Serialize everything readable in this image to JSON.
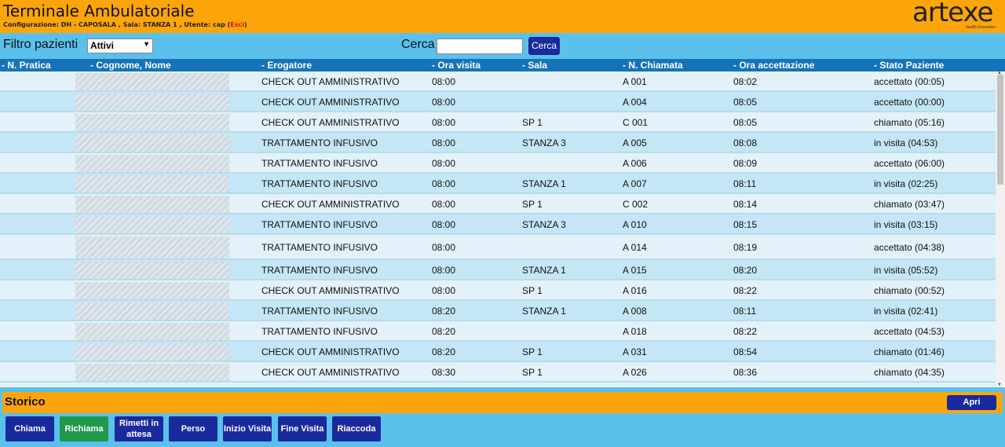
{
  "header": {
    "title": "Terminale Ambulatoriale",
    "config": "Configurazione: DH - CAPOSALA , Sala: STANZA 1 , Utente: cap (",
    "exit_label": "Esci",
    "config_end": ")",
    "logo_text": "artexe",
    "logo_tagline": "health innovation"
  },
  "filter": {
    "label": "Filtro pazienti",
    "selected": "Attivi",
    "search_label": "Cerca",
    "search_value": "",
    "search_button": "Cerca"
  },
  "table": {
    "columns": [
      "- N. Pratica",
      "- Cognome, Nome",
      "- Erogatore",
      "- Ora visita",
      "- Sala",
      "- N. Chiamata",
      "- Ora accettazione",
      "- Stato Paziente"
    ],
    "rows": [
      {
        "erogatore": "CHECK OUT AMMINISTRATIVO",
        "ora": "08:00",
        "sala": "",
        "chiamata": "A 001",
        "accettazione": "08:02",
        "stato": "accettato (00:05)"
      },
      {
        "erogatore": "CHECK OUT AMMINISTRATIVO",
        "ora": "08:00",
        "sala": "",
        "chiamata": "A 004",
        "accettazione": "08:05",
        "stato": "accettato (00:00)"
      },
      {
        "erogatore": "CHECK OUT AMMINISTRATIVO",
        "ora": "08:00",
        "sala": "SP 1",
        "chiamata": "C 001",
        "accettazione": "08:05",
        "stato": "chiamato (05:16)"
      },
      {
        "erogatore": "TRATTAMENTO INFUSIVO",
        "ora": "08:00",
        "sala": "STANZA 3",
        "chiamata": "A 005",
        "accettazione": "08:08",
        "stato": "in visita (04:53)"
      },
      {
        "erogatore": "TRATTAMENTO INFUSIVO",
        "ora": "08:00",
        "sala": "",
        "chiamata": "A 006",
        "accettazione": "08:09",
        "stato": "accettato (06:00)"
      },
      {
        "erogatore": "TRATTAMENTO INFUSIVO",
        "ora": "08:00",
        "sala": "STANZA 1",
        "chiamata": "A 007",
        "accettazione": "08:11",
        "stato": "in visita (02:25)"
      },
      {
        "erogatore": "CHECK OUT AMMINISTRATIVO",
        "ora": "08:00",
        "sala": "SP 1",
        "chiamata": "C 002",
        "accettazione": "08:14",
        "stato": "chiamato (03:47)"
      },
      {
        "erogatore": "TRATTAMENTO INFUSIVO",
        "ora": "08:00",
        "sala": "STANZA 3",
        "chiamata": "A 010",
        "accettazione": "08:15",
        "stato": "in visita (03:15)"
      },
      {
        "erogatore": "TRATTAMENTO INFUSIVO",
        "ora": "08:00",
        "sala": "",
        "chiamata": "A 014",
        "accettazione": "08:19",
        "stato": "accettato (04:38)"
      },
      {
        "erogatore": "TRATTAMENTO INFUSIVO",
        "ora": "08:00",
        "sala": "STANZA 1",
        "chiamata": "A 015",
        "accettazione": "08:20",
        "stato": "in visita (05:52)"
      },
      {
        "erogatore": "CHECK OUT AMMINISTRATIVO",
        "ora": "08:00",
        "sala": "SP 1",
        "chiamata": "A 016",
        "accettazione": "08:22",
        "stato": "chiamato (00:52)"
      },
      {
        "erogatore": "TRATTAMENTO INFUSIVO",
        "ora": "08:20",
        "sala": "STANZA 1",
        "chiamata": "A 008",
        "accettazione": "08:11",
        "stato": "in visita (02:41)"
      },
      {
        "erogatore": "TRATTAMENTO INFUSIVO",
        "ora": "08:20",
        "sala": "",
        "chiamata": "A 018",
        "accettazione": "08:22",
        "stato": "accettato (04:53)"
      },
      {
        "erogatore": "CHECK OUT AMMINISTRATIVO",
        "ora": "08:20",
        "sala": "SP 1",
        "chiamata": "A 031",
        "accettazione": "08:54",
        "stato": "chiamato (01:46)"
      },
      {
        "erogatore": "CHECK OUT AMMINISTRATIVO",
        "ora": "08:30",
        "sala": "SP 1",
        "chiamata": "A 026",
        "accettazione": "08:36",
        "stato": "chiamato (04:35)"
      }
    ]
  },
  "storico": {
    "title": "Storico",
    "open_label": "Apri"
  },
  "actions": {
    "chiama": "Chiama",
    "richiama": "Richiama",
    "rimetti_line1": "Rimetti in",
    "rimetti_line2": "attesa",
    "perso": "Perso",
    "inizio": "Inizio Visita",
    "fine": "Fine Visita",
    "riaccoda": "Riaccoda"
  },
  "colors": {
    "header": "#fca50a",
    "background": "#5bc0eb",
    "table_head": "#1673b8",
    "button": "#1a2a9c",
    "button_green": "#1e9a4a"
  }
}
